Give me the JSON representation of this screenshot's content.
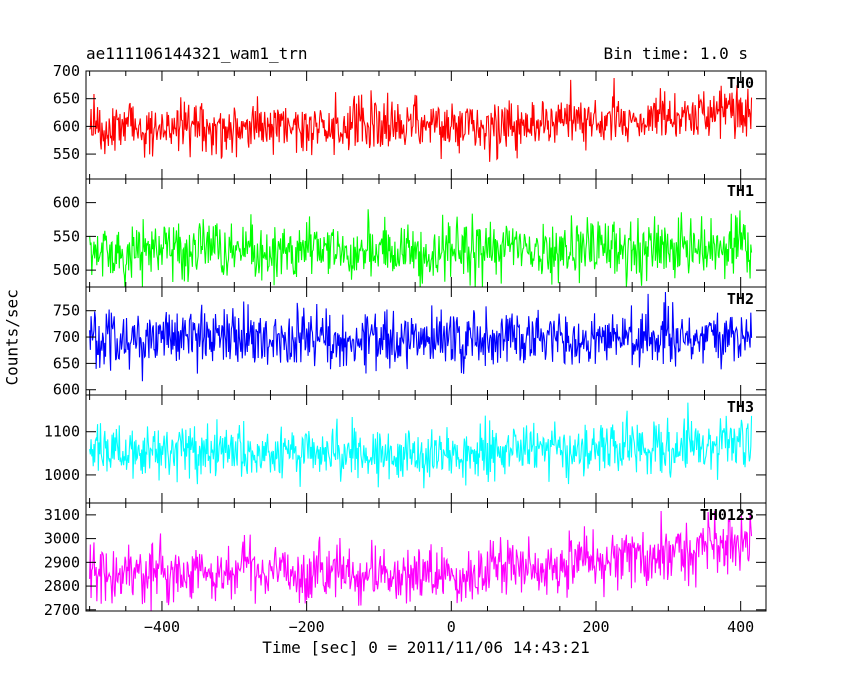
{
  "header": {
    "title": "ae111106144321_wam1_trn",
    "bin_time": "Bin time: 1.0 s"
  },
  "chart_data": {
    "type": "line",
    "xlabel": "Time [sec] 0 = 2011/11/06 14:43:21",
    "ylabel": "Counts/sec",
    "xlim": [
      -505,
      435
    ],
    "x_ticks": [
      -400,
      -200,
      0,
      200,
      400
    ],
    "x_range": [
      -500,
      415
    ],
    "bin": 1.0,
    "panels": [
      {
        "name": "TH0",
        "color": "#ff0000",
        "ylim": [
          505,
          700
        ],
        "yticks": [
          550,
          600,
          650,
          700
        ],
        "trend": {
          "x": [
            -500,
            -100,
            0,
            100,
            250,
            415
          ],
          "y": [
            596,
            600,
            600,
            605,
            614,
            630
          ]
        },
        "noise_sd": 24
      },
      {
        "name": "TH1",
        "color": "#00ff00",
        "ylim": [
          475,
          635
        ],
        "yticks": [
          500,
          550,
          600
        ],
        "trend": {
          "x": [
            -500,
            0,
            200,
            415
          ],
          "y": [
            527,
            528,
            531,
            537
          ]
        },
        "noise_sd": 21
      },
      {
        "name": "TH2",
        "color": "#0000ff",
        "ylim": [
          590,
          795
        ],
        "yticks": [
          600,
          650,
          700,
          750
        ],
        "trend": {
          "x": [
            -500,
            0,
            200,
            415
          ],
          "y": [
            697,
            695,
            697,
            705
          ]
        },
        "noise_sd": 27
      },
      {
        "name": "TH3",
        "color": "#00ffff",
        "ylim": [
          935,
          1185
        ],
        "yticks": [
          1000,
          1100
        ],
        "trend": {
          "x": [
            -500,
            -100,
            0,
            100,
            250,
            415
          ],
          "y": [
            1058,
            1053,
            1045,
            1058,
            1065,
            1080
          ]
        },
        "noise_sd": 32
      },
      {
        "name": "TH0123",
        "color": "#ff00ff",
        "ylim": [
          2695,
          3150
        ],
        "yticks": [
          2700,
          2800,
          2900,
          3000,
          3100
        ],
        "trend": {
          "x": [
            -500,
            -100,
            0,
            100,
            250,
            415
          ],
          "y": [
            2860,
            2855,
            2840,
            2890,
            2920,
            2990
          ]
        },
        "noise_sd": 62
      }
    ]
  }
}
